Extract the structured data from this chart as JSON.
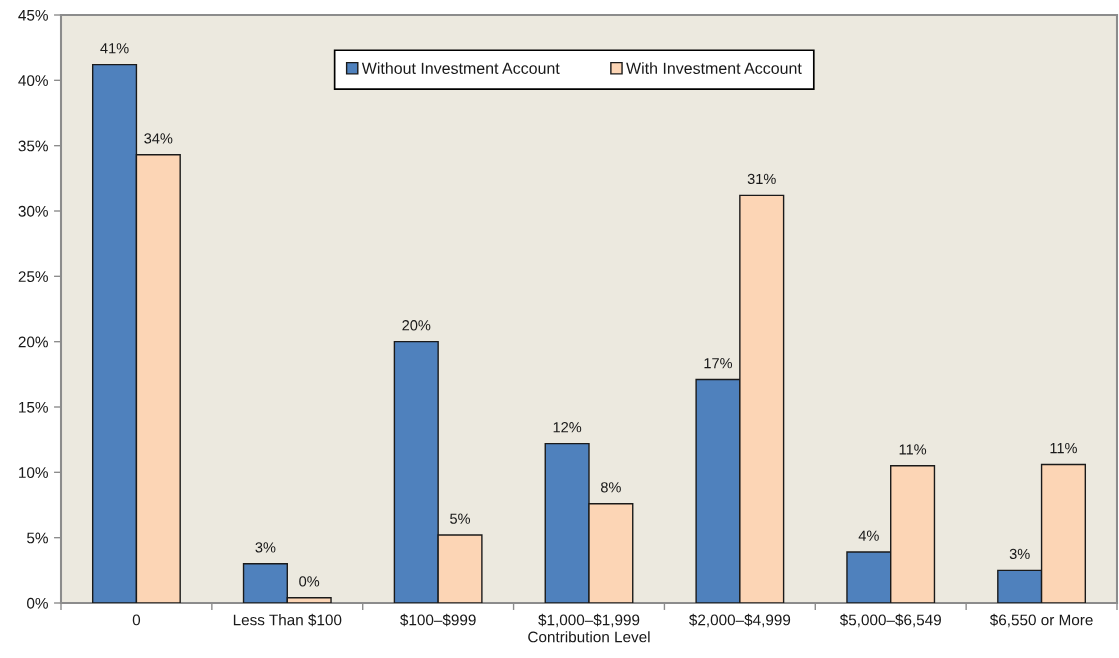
{
  "chart_data": {
    "type": "bar",
    "xlabel": "Contribution Level",
    "categories": [
      "0",
      "Less Than $100",
      "$100–$999",
      "$1,000–$1,999",
      "$2,000–$4,999",
      "$5,000–$6,549",
      "$6,550 or More"
    ],
    "series": [
      {
        "name": "Without Investment Account",
        "color": "#4f81bd",
        "values": [
          41.2,
          3.0,
          20.0,
          12.2,
          17.1,
          3.9,
          2.5
        ],
        "value_labels": [
          "41%",
          "3%",
          "20%",
          "12%",
          "17%",
          "4%",
          "3%"
        ]
      },
      {
        "name": "With Investment Account",
        "color": "#fcd5b5",
        "values": [
          34.3,
          0.4,
          5.2,
          7.6,
          31.2,
          10.5,
          10.6
        ],
        "value_labels": [
          "34%",
          "0%",
          "5%",
          "8%",
          "31%",
          "11%",
          "11%"
        ]
      }
    ],
    "ylim": [
      0,
      45
    ],
    "yticks": [
      {
        "value": 0,
        "label": "0%"
      },
      {
        "value": 5,
        "label": "5%"
      },
      {
        "value": 10,
        "label": "10%"
      },
      {
        "value": 15,
        "label": "15%"
      },
      {
        "value": 20,
        "label": "20%"
      },
      {
        "value": 25,
        "label": "25%"
      },
      {
        "value": 30,
        "label": "30%"
      },
      {
        "value": 35,
        "label": "35%"
      },
      {
        "value": 40,
        "label": "40%"
      },
      {
        "value": 45,
        "label": "45%"
      }
    ],
    "grid": false,
    "legend": "top"
  }
}
